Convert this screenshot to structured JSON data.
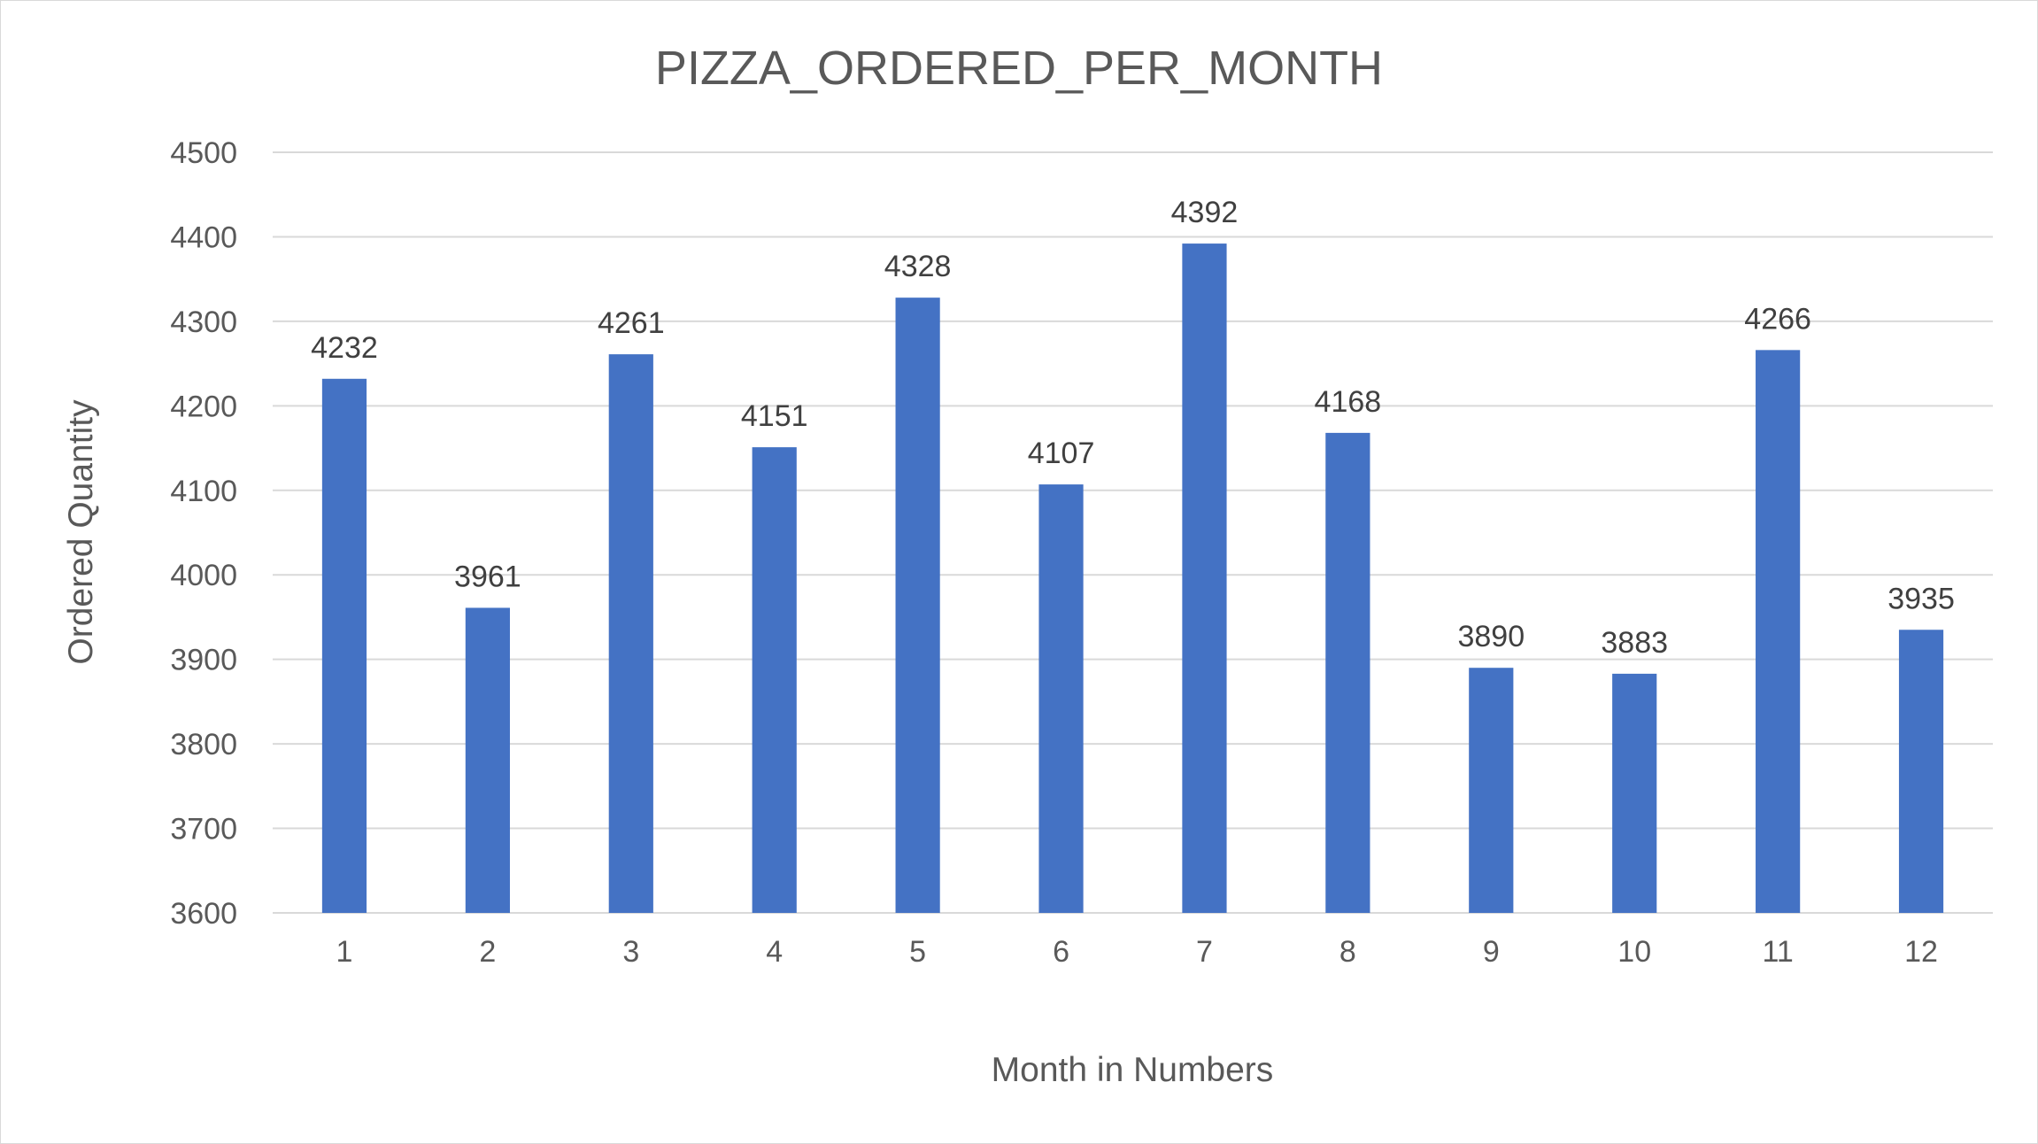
{
  "chart_data": {
    "type": "bar",
    "title": "PIZZA_ORDERED_PER_MONTH",
    "xlabel": "Month in Numbers",
    "ylabel": "Ordered Quantity",
    "categories": [
      "1",
      "2",
      "3",
      "4",
      "5",
      "6",
      "7",
      "8",
      "9",
      "10",
      "11",
      "12"
    ],
    "values": [
      4232,
      3961,
      4261,
      4151,
      4328,
      4107,
      4392,
      4168,
      3890,
      3883,
      4266,
      3935
    ],
    "ylim": [
      3600,
      4500
    ],
    "yticks": [
      "3600",
      "3700",
      "3800",
      "3900",
      "4000",
      "4100",
      "4200",
      "4300",
      "4400",
      "4500"
    ],
    "grid": true,
    "legend": "none",
    "colors": {
      "bar": "#4472c4"
    }
  }
}
